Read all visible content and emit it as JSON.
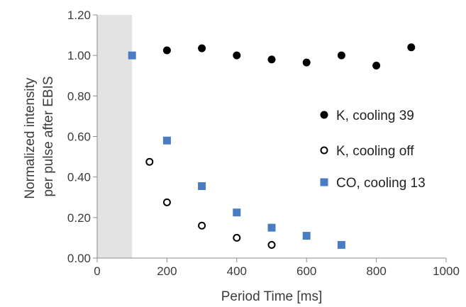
{
  "chart_data": {
    "type": "scatter",
    "title": "",
    "xlabel": "Period Time [ms]",
    "ylabel_lines": [
      "Normalized intensity",
      "per pulse after EBIS"
    ],
    "xlim": [
      0,
      1000
    ],
    "ylim": [
      0,
      1.2
    ],
    "x_ticks": [
      0,
      200,
      400,
      600,
      800,
      1000
    ],
    "x_tick_labels": [
      "0",
      "200",
      "400",
      "600",
      "800",
      "1000"
    ],
    "y_ticks": [
      0,
      0.2,
      0.4,
      0.6,
      0.8,
      1.0,
      1.2
    ],
    "y_tick_labels": [
      "0.00",
      "0.20",
      "0.40",
      "0.60",
      "0.80",
      "1.00",
      "1.20"
    ],
    "grid": false,
    "shaded_region": {
      "x_from": 0,
      "x_to": 100,
      "color": "#e3e3e3"
    },
    "legend_position": "right",
    "colors": {
      "axis": "#8c8c8c",
      "black_marker": "#000000",
      "blue_marker": "#4a7cc4",
      "text": "#3b3b3b"
    },
    "series": [
      {
        "name": "K, cooling 39",
        "marker": "filled-circle",
        "color": "#000000",
        "points": [
          {
            "x": 200,
            "y": 1.025
          },
          {
            "x": 300,
            "y": 1.035
          },
          {
            "x": 400,
            "y": 1.0
          },
          {
            "x": 500,
            "y": 0.98
          },
          {
            "x": 600,
            "y": 0.965
          },
          {
            "x": 700,
            "y": 1.0
          },
          {
            "x": 800,
            "y": 0.95
          },
          {
            "x": 900,
            "y": 1.04
          }
        ]
      },
      {
        "name": "K, cooling off",
        "marker": "open-circle",
        "color": "#000000",
        "points": [
          {
            "x": 150,
            "y": 0.475
          },
          {
            "x": 200,
            "y": 0.275
          },
          {
            "x": 300,
            "y": 0.16
          },
          {
            "x": 400,
            "y": 0.1
          },
          {
            "x": 500,
            "y": 0.065
          }
        ]
      },
      {
        "name": "CO, cooling 13",
        "marker": "square",
        "color": "#4a7cc4",
        "points": [
          {
            "x": 100,
            "y": 1.0
          },
          {
            "x": 200,
            "y": 0.58
          },
          {
            "x": 300,
            "y": 0.355
          },
          {
            "x": 400,
            "y": 0.225
          },
          {
            "x": 500,
            "y": 0.15
          },
          {
            "x": 600,
            "y": 0.11
          },
          {
            "x": 700,
            "y": 0.065
          }
        ]
      }
    ]
  }
}
